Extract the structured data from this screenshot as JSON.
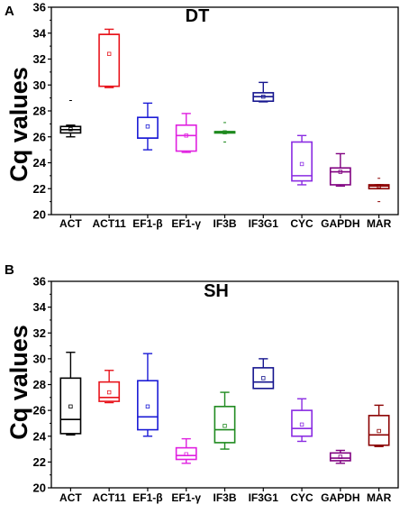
{
  "chart_data": [
    {
      "type": "box",
      "panel": "A",
      "title": "DT",
      "ylabel": "Cq values",
      "ylim": [
        20,
        36
      ],
      "yticks": [
        20,
        22,
        24,
        26,
        28,
        30,
        32,
        34,
        36
      ],
      "categories": [
        "ACT",
        "ACT11",
        "EF1-β",
        "EF1-γ",
        "IF3B",
        "IF3G1",
        "CYC",
        "GAPDH",
        "MAR"
      ],
      "colors": [
        "#000000",
        "#e8141c",
        "#1b1bd6",
        "#e020e0",
        "#1f8a1f",
        "#16168f",
        "#8a2be2",
        "#800080",
        "#8b0000"
      ],
      "boxes": [
        {
          "whisker_low": 26.0,
          "q1": 26.3,
          "median": 26.55,
          "q3": 26.8,
          "whisker_high": 26.9,
          "mean": 26.6,
          "outliers": [
            28.8
          ]
        },
        {
          "whisker_low": 29.8,
          "q1": 29.9,
          "median": 33.9,
          "q3": 33.9,
          "whisker_high": 34.3,
          "mean": 32.4,
          "outliers": []
        },
        {
          "whisker_low": 25.0,
          "q1": 25.9,
          "median": 25.9,
          "q3": 27.5,
          "whisker_high": 28.6,
          "mean": 26.8,
          "outliers": []
        },
        {
          "whisker_low": 24.8,
          "q1": 24.9,
          "median": 26.1,
          "q3": 26.9,
          "whisker_high": 27.8,
          "mean": 26.1,
          "outliers": []
        },
        {
          "whisker_low": 26.3,
          "q1": 26.3,
          "median": 26.4,
          "q3": 26.4,
          "whisker_high": 26.4,
          "mean": 26.35,
          "outliers": [
            27.1,
            25.6
          ]
        },
        {
          "whisker_low": 28.7,
          "q1": 28.75,
          "median": 29.1,
          "q3": 29.4,
          "whisker_high": 30.2,
          "mean": 29.1,
          "outliers": []
        },
        {
          "whisker_low": 22.3,
          "q1": 22.6,
          "median": 23.0,
          "q3": 25.6,
          "whisker_high": 26.1,
          "mean": 23.9,
          "outliers": []
        },
        {
          "whisker_low": 22.2,
          "q1": 22.3,
          "median": 23.3,
          "q3": 23.6,
          "whisker_high": 24.7,
          "mean": 23.3,
          "outliers": []
        },
        {
          "whisker_low": 22.0,
          "q1": 22.0,
          "median": 22.2,
          "q3": 22.3,
          "whisker_high": 22.3,
          "mean": 22.2,
          "outliers": [
            22.8,
            21.0
          ]
        }
      ]
    },
    {
      "type": "box",
      "panel": "B",
      "title": "SH",
      "ylabel": "Cq values",
      "ylim": [
        20,
        36
      ],
      "yticks": [
        20,
        22,
        24,
        26,
        28,
        30,
        32,
        34,
        36
      ],
      "categories": [
        "ACT",
        "ACT11",
        "EF1-β",
        "EF1-γ",
        "IF3B",
        "IF3G1",
        "CYC",
        "GAPDH",
        "MAR"
      ],
      "colors": [
        "#000000",
        "#e8141c",
        "#1b1bd6",
        "#e020e0",
        "#1f8a1f",
        "#16168f",
        "#8a2be2",
        "#800080",
        "#8b0000"
      ],
      "boxes": [
        {
          "whisker_low": 24.1,
          "q1": 24.2,
          "median": 25.3,
          "q3": 28.5,
          "whisker_high": 30.5,
          "mean": 26.3,
          "outliers": []
        },
        {
          "whisker_low": 26.6,
          "q1": 26.7,
          "median": 27.0,
          "q3": 28.2,
          "whisker_high": 29.1,
          "mean": 27.4,
          "outliers": []
        },
        {
          "whisker_low": 24.0,
          "q1": 24.5,
          "median": 25.5,
          "q3": 28.3,
          "whisker_high": 30.4,
          "mean": 26.3,
          "outliers": []
        },
        {
          "whisker_low": 21.9,
          "q1": 22.2,
          "median": 22.5,
          "q3": 23.1,
          "whisker_high": 23.8,
          "mean": 22.6,
          "outliers": []
        },
        {
          "whisker_low": 23.0,
          "q1": 23.5,
          "median": 24.5,
          "q3": 26.3,
          "whisker_high": 27.4,
          "mean": 24.8,
          "outliers": []
        },
        {
          "whisker_low": 27.7,
          "q1": 27.7,
          "median": 28.2,
          "q3": 29.3,
          "whisker_high": 30.0,
          "mean": 28.5,
          "outliers": []
        },
        {
          "whisker_low": 23.6,
          "q1": 24.0,
          "median": 24.6,
          "q3": 26.0,
          "whisker_high": 26.9,
          "mean": 24.9,
          "outliers": []
        },
        {
          "whisker_low": 21.9,
          "q1": 22.1,
          "median": 22.3,
          "q3": 22.7,
          "whisker_high": 22.9,
          "mean": 22.4,
          "outliers": []
        },
        {
          "whisker_low": 23.2,
          "q1": 23.3,
          "median": 24.1,
          "q3": 25.6,
          "whisker_high": 26.4,
          "mean": 24.4,
          "outliers": []
        }
      ]
    }
  ]
}
